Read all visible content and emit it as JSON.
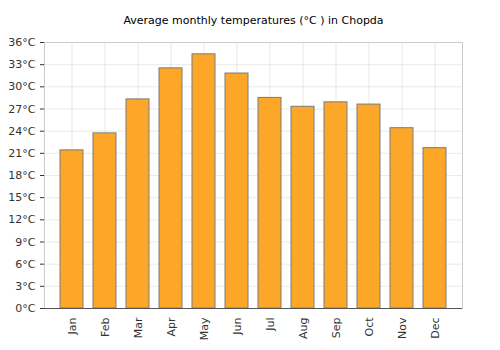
{
  "chart_data": {
    "type": "bar",
    "title": "Average monthly temperatures (°C ) in Chopda",
    "categories": [
      "Jan",
      "Feb",
      "Mar",
      "Apr",
      "May",
      "Jun",
      "Jul",
      "Aug",
      "Sep",
      "Oct",
      "Nov",
      "Dec"
    ],
    "values": [
      21.4,
      23.7,
      28.3,
      32.5,
      34.4,
      31.8,
      28.5,
      27.3,
      27.9,
      27.6,
      24.4,
      21.7
    ],
    "color": "#fda729",
    "ylim": [
      0,
      36
    ],
    "yticks": [
      {
        "value": 0,
        "label": "0°C"
      },
      {
        "value": 3,
        "label": "3°C"
      },
      {
        "value": 6,
        "label": "6°C"
      },
      {
        "value": 9,
        "label": "9°C"
      },
      {
        "value": 12,
        "label": "12°C"
      },
      {
        "value": 15,
        "label": "15°C"
      },
      {
        "value": 18,
        "label": "18°C"
      },
      {
        "value": 21,
        "label": "21°C"
      },
      {
        "value": 24,
        "label": "24°C"
      },
      {
        "value": 27,
        "label": "27°C"
      },
      {
        "value": 30,
        "label": "30°C"
      },
      {
        "value": 33,
        "label": "33°C"
      },
      {
        "value": 36,
        "label": "36°C"
      }
    ],
    "grid": true
  }
}
